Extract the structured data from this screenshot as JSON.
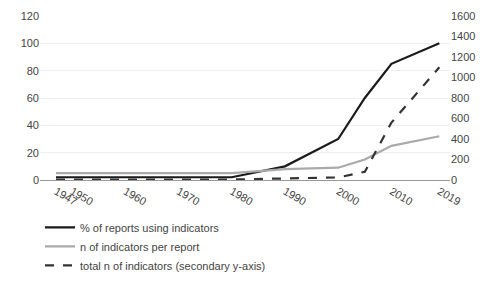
{
  "chart_data": {
    "type": "line",
    "x": [
      1947,
      1950,
      1960,
      1970,
      1980,
      1990,
      2000,
      2005,
      2010,
      2019
    ],
    "series": [
      {
        "name": "% of reports using indicators",
        "color": "#1a1a1a",
        "line_style": "solid",
        "values": [
          2,
          2,
          2,
          2,
          2,
          10,
          30,
          60,
          85,
          100
        ]
      },
      {
        "name": "n of indicators per report",
        "color": "#aaaaaa",
        "line_style": "solid",
        "values": [
          5,
          5,
          5,
          5,
          5,
          8,
          9,
          15,
          25,
          32
        ]
      },
      {
        "name": "total n of indicators (secondary y-axis)",
        "color": "#333333",
        "line_style": "dashed",
        "axis": "y2",
        "values": [
          5,
          5,
          5,
          5,
          5,
          15,
          25,
          80,
          560,
          1100
        ]
      }
    ],
    "xlim": [
      1944,
      2021
    ],
    "xticks": [
      1947,
      1950,
      1960,
      1970,
      1980,
      1990,
      2000,
      2010,
      2019
    ],
    "ylim": [
      0,
      120
    ],
    "yticks": [
      0,
      20,
      40,
      60,
      80,
      100,
      120
    ],
    "y2lim": [
      0,
      1600
    ],
    "y2ticks": [
      0,
      200,
      400,
      600,
      800,
      1000,
      1200,
      1400,
      1600
    ],
    "grid": true,
    "legend": "bottom"
  }
}
